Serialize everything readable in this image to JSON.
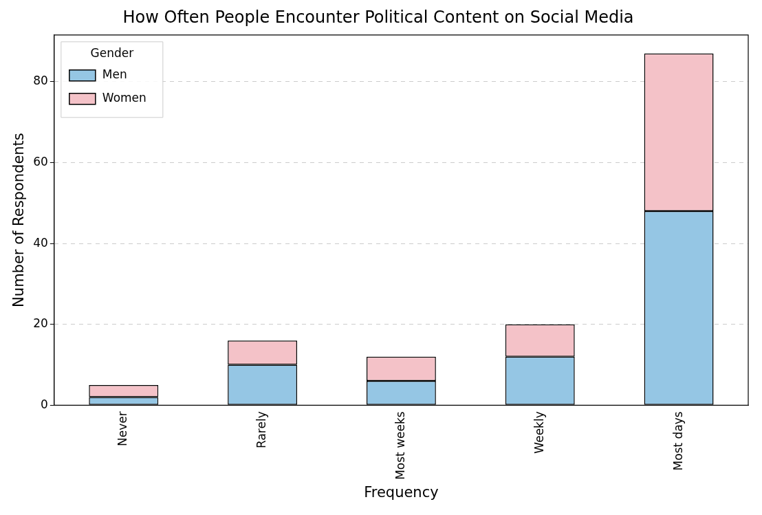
{
  "chart_data": {
    "type": "bar",
    "title": "How Often People Encounter Political Content on Social Media",
    "xlabel": "Frequency",
    "ylabel": "Number of Respondents",
    "legend_title": "Gender",
    "categories": [
      "Never",
      "Rarely",
      "Most weeks",
      "Weekly",
      "Most days"
    ],
    "series": [
      {
        "name": "Men",
        "color": "#95c6e4",
        "values": [
          2,
          10,
          6,
          12,
          48
        ]
      },
      {
        "name": "Women",
        "color": "#f4c2c8",
        "values": [
          3,
          6,
          6,
          8,
          39
        ]
      }
    ],
    "stacked": true,
    "ylim": [
      0,
      91.6
    ],
    "yticks": [
      0,
      20,
      40,
      60,
      80
    ],
    "grid": "y",
    "legend": "top left"
  }
}
